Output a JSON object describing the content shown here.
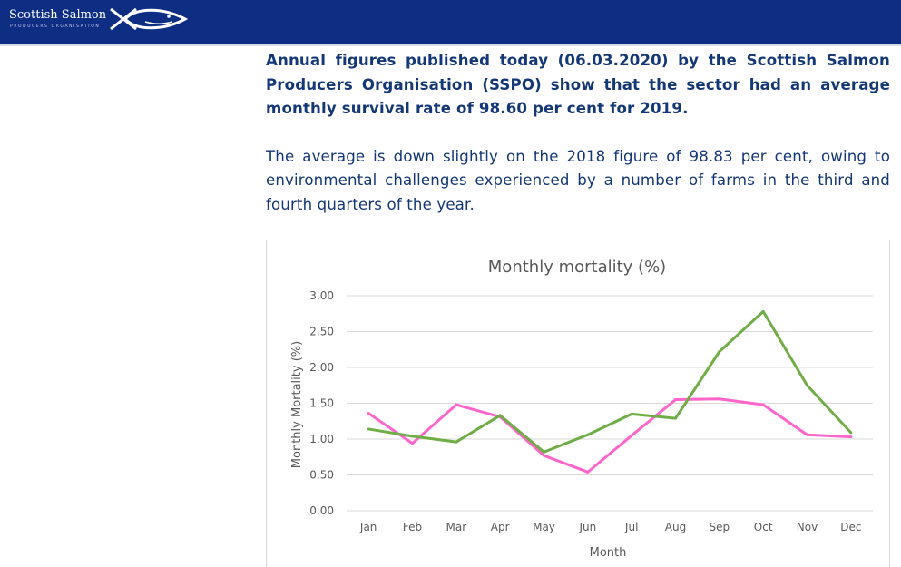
{
  "header": {
    "brand_name": "Scottish Salmon",
    "brand_sub": "PRODUCERS ORGANISATION",
    "bg_color": "#0e2e84",
    "logo_icon": "fish-icon"
  },
  "article": {
    "lead": "Annual figures published today (06.03.2020) by the Scottish Salmon Producers Organisation (SSPO) show that the sector had an average monthly survival rate of 98.60 per cent for 2019.",
    "body": "The average is down slightly on the 2018 figure of 98.83 per cent, owing to environmental challenges experienced by a number of farms in the third and fourth quarters of the year.",
    "text_color": "#143777"
  },
  "chart_data": {
    "type": "line",
    "title": "Monthly mortality (%)",
    "xlabel": "Month",
    "ylabel": "Monthly Mortality (%)",
    "categories": [
      "Jan",
      "Feb",
      "Mar",
      "Apr",
      "May",
      "Jun",
      "Jul",
      "Aug",
      "Sep",
      "Oct",
      "Nov",
      "Dec"
    ],
    "ylim": [
      0,
      3
    ],
    "yticks": [
      "0.00",
      "0.50",
      "1.00",
      "1.50",
      "2.00",
      "2.50",
      "3.00"
    ],
    "grid": true,
    "series": [
      {
        "color": "#ff66cc",
        "values": [
          1.36,
          0.94,
          1.48,
          1.31,
          0.77,
          0.54,
          1.05,
          1.55,
          1.56,
          1.48,
          1.06,
          1.03
        ]
      },
      {
        "color": "#70ad47",
        "values": [
          1.14,
          1.04,
          0.96,
          1.33,
          0.82,
          1.06,
          1.35,
          1.29,
          2.22,
          2.78,
          1.75,
          1.09
        ]
      }
    ]
  }
}
